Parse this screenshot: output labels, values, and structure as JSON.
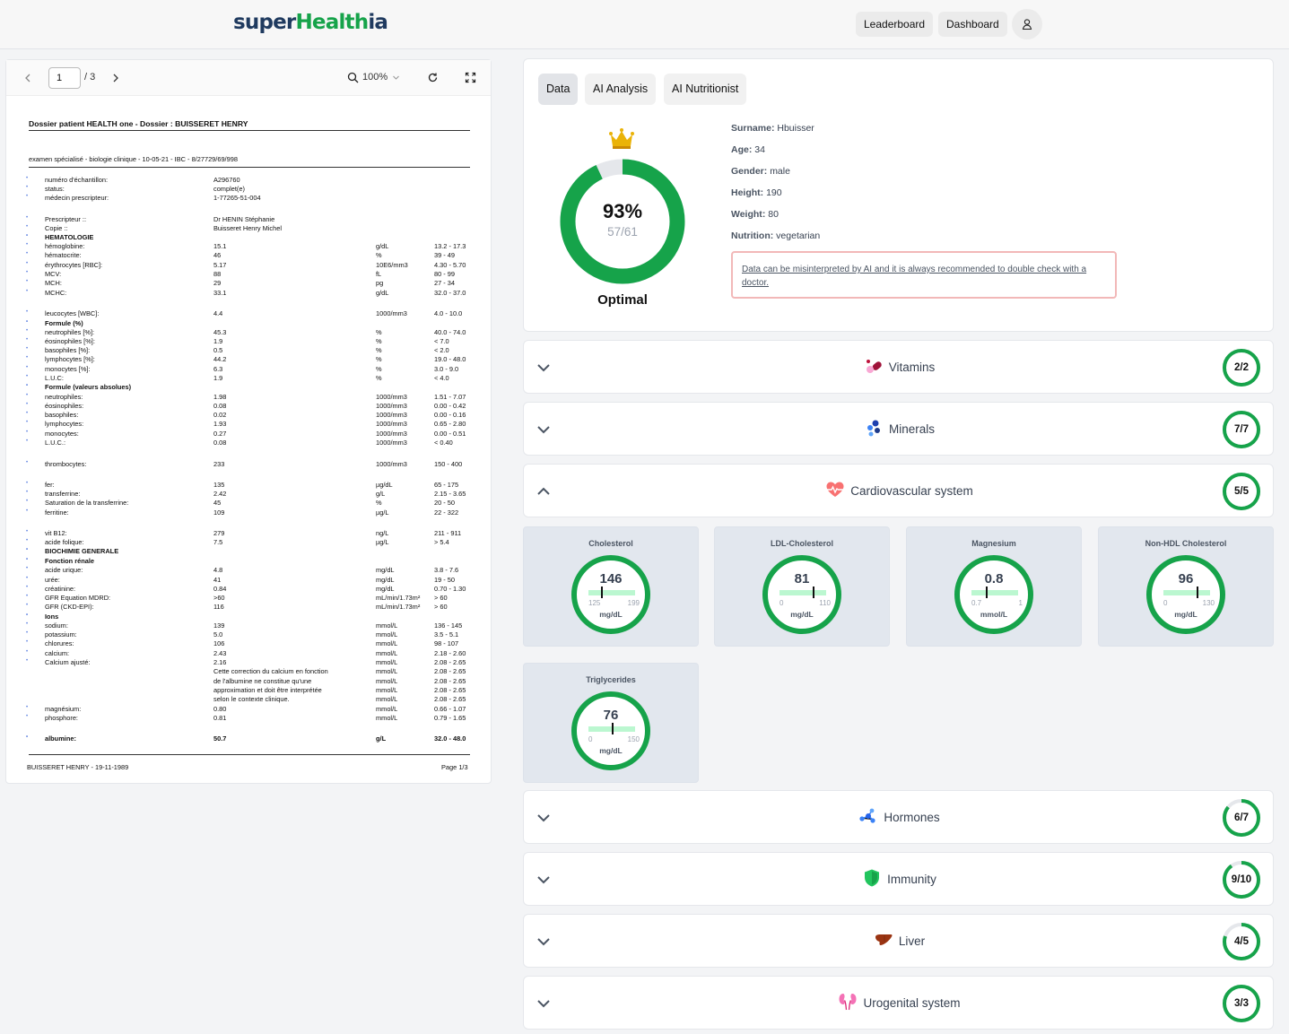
{
  "header": {
    "logo_prefix": "super",
    "logo_highlight": "Health",
    "logo_suffix": "ia",
    "nav": [
      "Leaderboard",
      "Dashboard"
    ],
    "user_icon": "user-icon"
  },
  "pdf_viewer": {
    "page_current": "1",
    "page_total": "/ 3",
    "zoom": "100%",
    "document": {
      "title": "Dossier patient HEALTH one - Dossier : BUISSERET HENRY",
      "subtitle": "examen spécialisé - biologie clinique - 10-05-21 - IBC - 8/27729/69/998",
      "rows": [
        {
          "l": "numéro d'échantillon:",
          "v": "A296760",
          "u": "",
          "r": "",
          "m": "•"
        },
        {
          "l": "status:",
          "v": "complet(e)",
          "u": "",
          "r": "",
          "m": "•"
        },
        {
          "l": "médecin prescripteur:",
          "v": "1-77265-51-004",
          "u": "",
          "r": "",
          "m": "•"
        },
        {
          "l": "Prescripteur ::",
          "v": "Dr HENIN Stéphanie",
          "u": "",
          "r": "",
          "m": "•"
        },
        {
          "l": "Copie ::",
          "v": "Buisseret Henry Michel",
          "u": "",
          "r": "",
          "m": "•"
        },
        {
          "l": "HEMATOLOGIE",
          "v": "",
          "u": "",
          "r": "",
          "m": "•",
          "b": true
        },
        {
          "l": "hémoglobine:",
          "v": "15.1",
          "u": "g/dL",
          "r": "13.2 - 17.3",
          "m": "•"
        },
        {
          "l": "hématocrite:",
          "v": "46",
          "u": "%",
          "r": "39 - 49",
          "m": "•"
        },
        {
          "l": "érythrocytes [RBC]:",
          "v": "5.17",
          "u": "10E6/mm3",
          "r": "4.30 - 5.70",
          "m": "•"
        },
        {
          "l": "MCV:",
          "v": "88",
          "u": "fL",
          "r": "80 - 99",
          "m": "•"
        },
        {
          "l": "MCH:",
          "v": "29",
          "u": "pg",
          "r": "27 - 34",
          "m": "•"
        },
        {
          "l": "MCHC:",
          "v": "33.1",
          "u": "g/dL",
          "r": "32.0 - 37.0",
          "m": "•"
        },
        {
          "l": "leucocytes [WBC]:",
          "v": "4.4",
          "u": "1000/mm3",
          "r": "4.0 - 10.0",
          "m": "•"
        },
        {
          "l": "Formule (%)",
          "v": "",
          "u": "",
          "r": "",
          "m": "•",
          "b": true
        },
        {
          "l": "neutrophiles [%]:",
          "v": "45.3",
          "u": "%",
          "r": "40.0 - 74.0",
          "m": "•"
        },
        {
          "l": "éosinophiles [%]:",
          "v": "1.9",
          "u": "%",
          "r": "< 7.0",
          "m": "•"
        },
        {
          "l": "basophiles [%]:",
          "v": "0.5",
          "u": "%",
          "r": "< 2.0",
          "m": "•"
        },
        {
          "l": "lymphocytes [%]:",
          "v": "44.2",
          "u": "%",
          "r": "19.0 - 48.0",
          "m": "•"
        },
        {
          "l": "monocytes [%]:",
          "v": "6.3",
          "u": "%",
          "r": "3.0 - 9.0",
          "m": "•"
        },
        {
          "l": "L.U.C:",
          "v": "1.9",
          "u": "%",
          "r": "< 4.0",
          "m": "•"
        },
        {
          "l": "Formule (valeurs absolues)",
          "v": "",
          "u": "",
          "r": "",
          "m": "•",
          "b": true
        },
        {
          "l": "neutrophiles:",
          "v": "1.98",
          "u": "1000/mm3",
          "r": "1.51 - 7.07",
          "m": "•"
        },
        {
          "l": "éosinophiles:",
          "v": "0.08",
          "u": "1000/mm3",
          "r": "0.00 - 0.42",
          "m": "•"
        },
        {
          "l": "basophiles:",
          "v": "0.02",
          "u": "1000/mm3",
          "r": "0.00 - 0.16",
          "m": "•"
        },
        {
          "l": "lymphocytes:",
          "v": "1.93",
          "u": "1000/mm3",
          "r": "0.65 - 2.80",
          "m": "•"
        },
        {
          "l": "monocytes:",
          "v": "0.27",
          "u": "1000/mm3",
          "r": "0.00 - 0.51",
          "m": "•"
        },
        {
          "l": "L.U.C.:",
          "v": "0.08",
          "u": "1000/mm3",
          "r": "< 0.40",
          "m": "•"
        },
        {
          "l": "thrombocytes:",
          "v": "233",
          "u": "1000/mm3",
          "r": "150 - 400",
          "m": "•"
        },
        {
          "l": "fer:",
          "v": "135",
          "u": "µg/dL",
          "r": "65 - 175",
          "m": "•"
        },
        {
          "l": "transferrine:",
          "v": "2.42",
          "u": "g/L",
          "r": "2.15 - 3.65",
          "m": "•"
        },
        {
          "l": "Saturation de la transferrine:",
          "v": "45",
          "u": "%",
          "r": "20 - 50",
          "m": "•"
        },
        {
          "l": "ferritine:",
          "v": "109",
          "u": "µg/L",
          "r": "22 - 322",
          "m": "•"
        },
        {
          "l": "vit B12:",
          "v": "279",
          "u": "ng/L",
          "r": "211 - 911",
          "m": "•"
        },
        {
          "l": "acide folique:",
          "v": "7.5",
          "u": "µg/L",
          "r": "> 5.4",
          "m": "•"
        },
        {
          "l": "BIOCHIMIE GENERALE",
          "v": "",
          "u": "",
          "r": "",
          "m": "•",
          "b": true
        },
        {
          "l": "Fonction rénale",
          "v": "",
          "u": "",
          "r": "",
          "m": "•",
          "b": true
        },
        {
          "l": "acide urique:",
          "v": "4.8",
          "u": "mg/dL",
          "r": "3.8 - 7.6",
          "m": "•"
        },
        {
          "l": "urée:",
          "v": "41",
          "u": "mg/dL",
          "r": "19 - 50",
          "m": "•"
        },
        {
          "l": "créatinine:",
          "v": "0.84",
          "u": "mg/dL",
          "r": "0.70 - 1.30",
          "m": "•"
        },
        {
          "l": "GFR Equation MDRD:",
          "v": ">60",
          "u": "mL/min/1.73m²",
          "r": "> 60",
          "m": "•"
        },
        {
          "l": "GFR (CKD-EPI):",
          "v": "116",
          "u": "mL/min/1.73m²",
          "r": "> 60",
          "m": "•"
        },
        {
          "l": "Ions",
          "v": "",
          "u": "",
          "r": "",
          "m": "•",
          "b": true
        },
        {
          "l": "sodium:",
          "v": "139",
          "u": "mmol/L",
          "r": "136 - 145",
          "m": "•"
        },
        {
          "l": "potassium:",
          "v": "5.0",
          "u": "mmol/L",
          "r": "3.5 - 5.1",
          "m": "•"
        },
        {
          "l": "chlorures:",
          "v": "106",
          "u": "mmol/L",
          "r": "98 - 107",
          "m": "•"
        },
        {
          "l": "calcium:",
          "v": "2.43",
          "u": "mmol/L",
          "r": "2.18 - 2.60",
          "m": "•"
        },
        {
          "l": "Calcium ajusté:",
          "v": "2.16",
          "u": "mmol/L",
          "r": "2.08 - 2.65",
          "m": "•"
        },
        {
          "l": "",
          "v": "Cette correction du calcium en fonction",
          "u": "mmol/L",
          "r": "2.08 - 2.65",
          "m": ""
        },
        {
          "l": "",
          "v": "de l'albumine ne constitue qu'une",
          "u": "mmol/L",
          "r": "2.08 - 2.65",
          "m": ""
        },
        {
          "l": "",
          "v": "approximation et doit être interprétée",
          "u": "mmol/L",
          "r": "2.08 - 2.65",
          "m": ""
        },
        {
          "l": "",
          "v": "selon le contexte clinique.",
          "u": "mmol/L",
          "r": "2.08 - 2.65",
          "m": ""
        },
        {
          "l": "magnésium:",
          "v": "0.80",
          "u": "mmol/L",
          "r": "0.66 - 1.07",
          "m": "•"
        },
        {
          "l": "phosphore:",
          "v": "0.81",
          "u": "mmol/L",
          "r": "0.79 - 1.65",
          "m": "•"
        },
        {
          "l": "albumine:",
          "v": "50.7",
          "u": "g/L",
          "r": "32.0 - 48.0",
          "m": "•",
          "b": true
        }
      ],
      "footer_left": "BUISSERET HENRY - 19-11-1989",
      "footer_right": "Page 1/3"
    }
  },
  "tabs": [
    "Data",
    "AI Analysis",
    "AI Nutritionist"
  ],
  "summary": {
    "percent": "93%",
    "fraction": "57/61",
    "progress": 0.93,
    "status": "Optimal",
    "ring_color": "#16a34a",
    "crown_color": "#eab308"
  },
  "profile": [
    {
      "label": "Surname",
      "value": "Hbuisser"
    },
    {
      "label": "Age",
      "value": "34"
    },
    {
      "label": "Gender",
      "value": "male"
    },
    {
      "label": "Height",
      "value": "190"
    },
    {
      "label": "Weight",
      "value": "80"
    },
    {
      "label": "Nutrition",
      "value": "vegetarian"
    }
  ],
  "warning": "Data can be misinterpreted by AI and it is always recommended to double check with a doctor.",
  "categories": [
    {
      "name": "Vitamins",
      "score": "2/2",
      "progress": 1.0,
      "icon": "pills-icon",
      "expanded": false
    },
    {
      "name": "Minerals",
      "score": "7/7",
      "progress": 1.0,
      "icon": "minerals-icon",
      "expanded": false
    },
    {
      "name": "Cardiovascular system",
      "score": "5/5",
      "progress": 1.0,
      "icon": "heart-pulse-icon",
      "expanded": true
    },
    {
      "name": "Hormones",
      "score": "6/7",
      "progress": 0.857,
      "icon": "molecule-icon",
      "expanded": false
    },
    {
      "name": "Immunity",
      "score": "9/10",
      "progress": 0.9,
      "icon": "shield-icon",
      "expanded": false
    },
    {
      "name": "Liver",
      "score": "4/5",
      "progress": 0.8,
      "icon": "liver-icon",
      "expanded": false
    },
    {
      "name": "Urogenital system",
      "score": "3/3",
      "progress": 1.0,
      "icon": "kidney-icon",
      "expanded": false
    }
  ],
  "cardio_markers": [
    {
      "name": "Cholesterol",
      "value": "146",
      "min": "125",
      "max": "199",
      "position": 0.28,
      "unit": "mg/dL"
    },
    {
      "name": "LDL-Cholesterol",
      "value": "81",
      "min": "0",
      "max": "110",
      "position": 0.74,
      "unit": "mg/dL"
    },
    {
      "name": "Magnesium",
      "value": "0.8",
      "min": "0.7",
      "max": "1",
      "position": 0.33,
      "unit": "mmol/L"
    },
    {
      "name": "Non-HDL Cholesterol",
      "value": "96",
      "min": "0",
      "max": "130",
      "position": 0.74,
      "unit": "mg/dL"
    },
    {
      "name": "Triglycerides",
      "value": "76",
      "min": "0",
      "max": "150",
      "position": 0.51,
      "unit": "mg/dL"
    }
  ],
  "colors": {
    "accent_green": "#16a34a",
    "brand_navy": "#1f3a5f",
    "warning_border": "#f2b8b8"
  }
}
